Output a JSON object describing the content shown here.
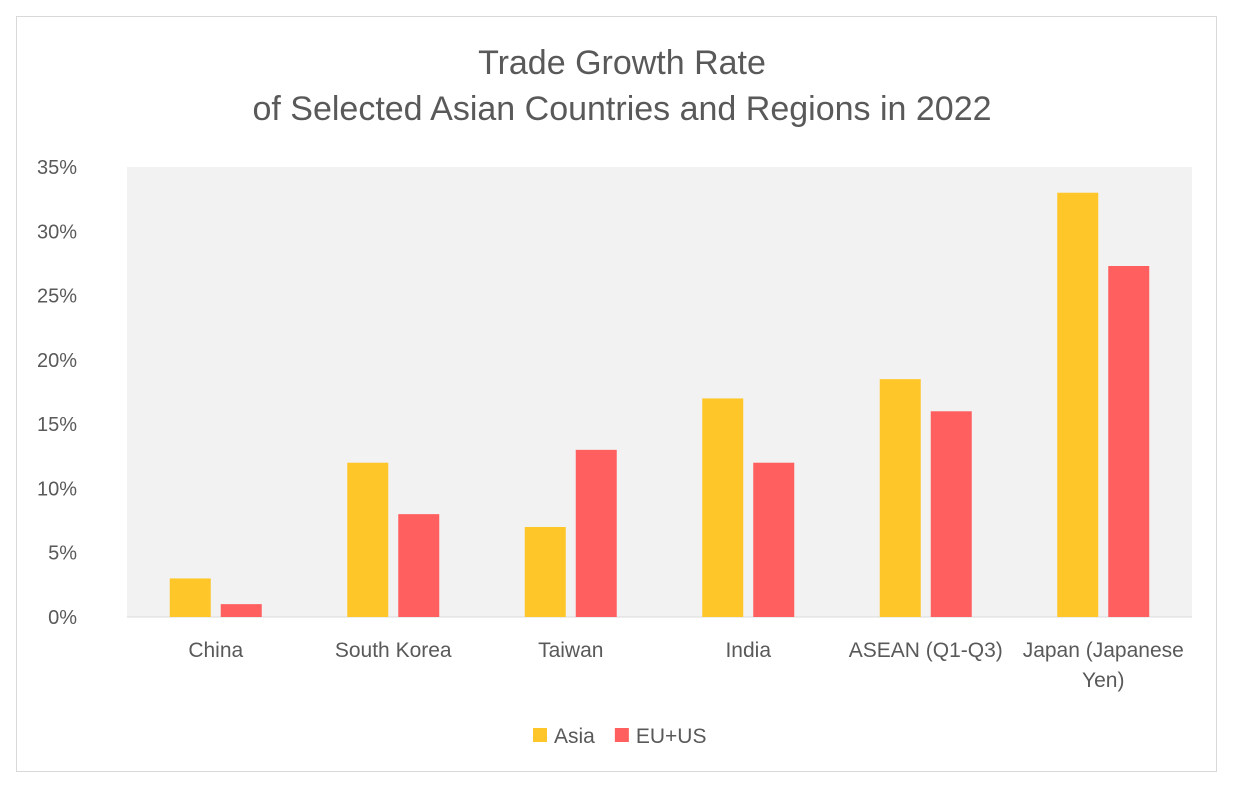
{
  "chart_data": {
    "type": "bar",
    "title": [
      "Trade Growth Rate",
      "of Selected Asian Countries and Regions in 2022"
    ],
    "categories": [
      [
        "China"
      ],
      [
        "South Korea"
      ],
      [
        "Taiwan"
      ],
      [
        "India"
      ],
      [
        "ASEAN (Q1-Q3)"
      ],
      [
        "Japan (Japanese",
        "Yen)"
      ]
    ],
    "series": [
      {
        "name": "Asia",
        "color": "#FFC629",
        "values": [
          3,
          12,
          7,
          17,
          18.5,
          33
        ]
      },
      {
        "name": "EU+US",
        "color": "#FF5F5F",
        "values": [
          1,
          8,
          13,
          12,
          16,
          27.3
        ]
      }
    ],
    "ylim": [
      0,
      35
    ],
    "yticks": [
      0,
      5,
      10,
      15,
      20,
      25,
      30,
      35
    ],
    "ytick_format": "%",
    "xlabel": "",
    "ylabel": "",
    "grid": false,
    "plot_background": "#F2F2F2",
    "legend_position": "bottom"
  }
}
